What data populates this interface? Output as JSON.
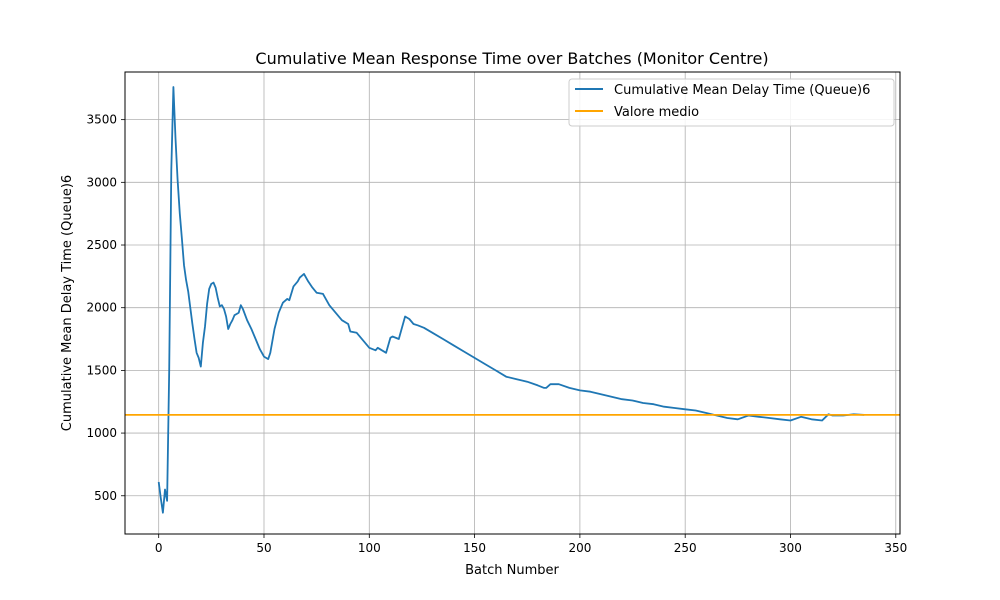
{
  "chart_data": {
    "type": "line",
    "title": "Cumulative Mean Response Time over Batches (Monitor Centre)",
    "xlabel": "Batch Number",
    "ylabel": "Cumulative Mean Delay Time (Queue)6",
    "xlim": [
      -16,
      352
    ],
    "ylim": [
      195,
      3880
    ],
    "xticks": [
      0,
      50,
      100,
      150,
      200,
      250,
      300,
      350
    ],
    "yticks": [
      500,
      1000,
      1500,
      2000,
      2500,
      3000,
      3500
    ],
    "grid": true,
    "legend_position": "top-right",
    "series": [
      {
        "name": "Cumulative Mean Delay Time (Queue)6",
        "color": "#1f77b4",
        "x": [
          0,
          1,
          2,
          3,
          4,
          5,
          6,
          7,
          8,
          9,
          10,
          11,
          12,
          13,
          14,
          15,
          16,
          17,
          18,
          19,
          20,
          21,
          22,
          23,
          24,
          25,
          26,
          27,
          28,
          29,
          30,
          31,
          32,
          33,
          34,
          35,
          36,
          37,
          38,
          39,
          40,
          42,
          44,
          46,
          48,
          50,
          52,
          53,
          55,
          57,
          59,
          61,
          62,
          64,
          66,
          67,
          69,
          71,
          73,
          75,
          78,
          81,
          84,
          87,
          90,
          91,
          94,
          97,
          100,
          103,
          104,
          106,
          108,
          110,
          111,
          114,
          117,
          119,
          121,
          123,
          126,
          130,
          135,
          140,
          145,
          150,
          155,
          160,
          165,
          170,
          175,
          180,
          183,
          184,
          186,
          190,
          195,
          200,
          205,
          210,
          215,
          220,
          225,
          230,
          235,
          240,
          245,
          250,
          255,
          260,
          265,
          270,
          275,
          280,
          285,
          290,
          295,
          300,
          305,
          310,
          315,
          318,
          320,
          325,
          330,
          335
        ],
        "y": [
          610,
          480,
          365,
          550,
          460,
          1500,
          3100,
          3760,
          3350,
          3020,
          2750,
          2550,
          2340,
          2220,
          2130,
          2000,
          1870,
          1750,
          1640,
          1600,
          1530,
          1720,
          1850,
          2030,
          2150,
          2190,
          2200,
          2160,
          2080,
          2010,
          2020,
          1990,
          1930,
          1830,
          1870,
          1900,
          1940,
          1950,
          1960,
          2020,
          1990,
          1900,
          1830,
          1750,
          1670,
          1610,
          1590,
          1640,
          1830,
          1960,
          2040,
          2070,
          2060,
          2170,
          2210,
          2240,
          2270,
          2210,
          2160,
          2120,
          2110,
          2020,
          1960,
          1900,
          1870,
          1810,
          1800,
          1740,
          1680,
          1660,
          1680,
          1660,
          1640,
          1760,
          1770,
          1750,
          1930,
          1910,
          1870,
          1860,
          1840,
          1800,
          1750,
          1700,
          1650,
          1600,
          1550,
          1500,
          1450,
          1430,
          1410,
          1380,
          1360,
          1360,
          1390,
          1390,
          1360,
          1340,
          1330,
          1310,
          1290,
          1270,
          1260,
          1240,
          1230,
          1210,
          1200,
          1190,
          1180,
          1160,
          1140,
          1120,
          1110,
          1140,
          1130,
          1120,
          1110,
          1100,
          1130,
          1110,
          1100,
          1150,
          1140,
          1140,
          1150,
          1145
        ]
      },
      {
        "name": "Valore medio",
        "color": "#ffa500",
        "x": [
          -16,
          352
        ],
        "y": [
          1145,
          1145
        ]
      }
    ]
  }
}
